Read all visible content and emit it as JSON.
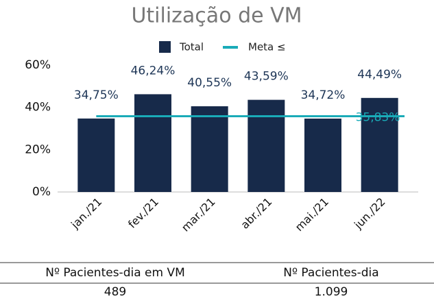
{
  "chart_data": {
    "type": "bar",
    "title": "Utilização de VM",
    "categories": [
      "jan./21",
      "fev./21",
      "mar./21",
      "abr./21",
      "mai./21",
      "jun./22"
    ],
    "series": [
      {
        "name": "Total",
        "color": "#172a4a",
        "values": [
          34.75,
          46.24,
          40.55,
          43.59,
          34.72,
          44.49
        ],
        "value_labels": [
          "34,75%",
          "46,24%",
          "40,55%",
          "43,59%",
          "34,72%",
          "44,49%"
        ]
      },
      {
        "name": "Meta ≤",
        "color": "#1aabb8",
        "type": "line",
        "value": 35.83,
        "value_label": "35,83%"
      }
    ],
    "ylim": [
      0,
      60
    ],
    "yticks": [
      {
        "value": 0,
        "label": "0%"
      },
      {
        "value": 20,
        "label": "20%"
      },
      {
        "value": 40,
        "label": "40%"
      },
      {
        "value": 60,
        "label": "60%"
      }
    ],
    "grid": false,
    "legend": "top"
  },
  "table": {
    "header": [
      "Nº Pacientes-dia em VM",
      "Nº Pacientes-dia"
    ],
    "rows": [
      [
        "489",
        "1.099"
      ]
    ]
  }
}
